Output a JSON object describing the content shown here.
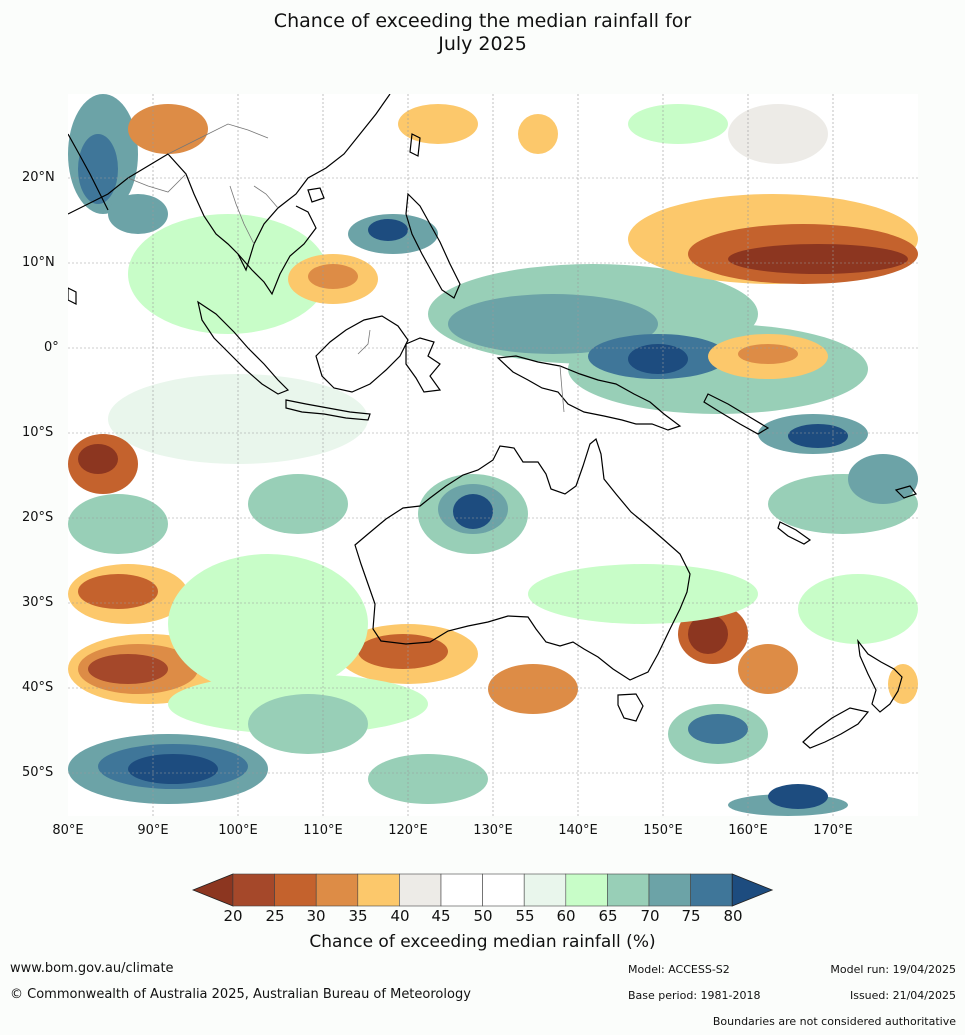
{
  "title_line1": "Chance of exceeding the median rainfall for",
  "title_line2": "July 2025",
  "map": {
    "lon_ticks": [
      "80°E",
      "90°E",
      "100°E",
      "110°E",
      "120°E",
      "130°E",
      "140°E",
      "150°E",
      "160°E",
      "170°E"
    ],
    "lat_ticks": [
      "20°N",
      "10°N",
      "0°",
      "10°S",
      "20°S",
      "30°S",
      "40°S",
      "50°S"
    ],
    "lon_range": [
      80,
      180
    ],
    "lat_range": [
      -55,
      30
    ]
  },
  "colorbar": {
    "labels": [
      "20",
      "25",
      "30",
      "35",
      "40",
      "45",
      "50",
      "55",
      "60",
      "65",
      "70",
      "75",
      "80"
    ],
    "colors": [
      "#a5482a",
      "#c4622d",
      "#dd8c46",
      "#fcc86b",
      "#edebe7",
      "#ffffff",
      "#ffffff",
      "#e9f6ec",
      "#c8fdc8",
      "#98cfb7",
      "#6ca3a7",
      "#3f7699"
    ],
    "low_extend_color": "#8c3620",
    "high_extend_color": "#1d4c7f",
    "title": "Chance of exceeding median rainfall (%)"
  },
  "footer": {
    "website": "www.bom.gov.au/climate",
    "copyright": "© Commonwealth of Australia 2025, Australian Bureau of Meteorology",
    "model": "Model: ACCESS-S2",
    "base_period": "Base period: 1981-2018",
    "model_run": "Model run: 19/04/2025",
    "issued": "Issued: 21/04/2025",
    "disclaimer": "Boundaries are not considered authoritative"
  }
}
